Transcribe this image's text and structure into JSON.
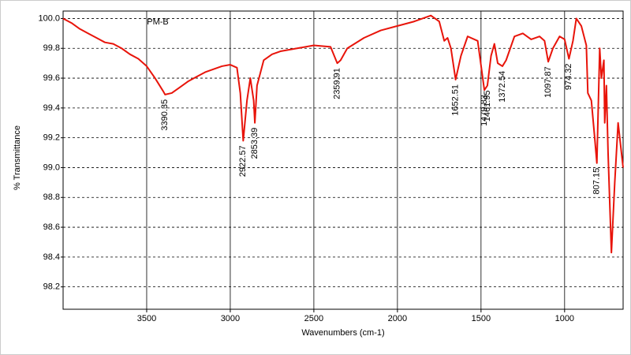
{
  "chart_data": {
    "type": "line",
    "title": "PM-B",
    "x_label": "Wavenumbers (cm-1)",
    "y_label": "% Transmittance",
    "xlim": [
      4000,
      650
    ],
    "ylim": [
      98.05,
      100.05
    ],
    "x_reversed": true,
    "xticks": [
      3500,
      3000,
      2500,
      2000,
      1500,
      1000
    ],
    "yticks": [
      {
        "value": 98.2,
        "label": "98.2"
      },
      {
        "value": 98.4,
        "label": "98.4"
      },
      {
        "value": 98.6,
        "label": "98.6"
      },
      {
        "value": 98.8,
        "label": "98.8"
      },
      {
        "value": 99.0,
        "label": "99.0"
      },
      {
        "value": 99.2,
        "label": "99.2"
      },
      {
        "value": 99.4,
        "label": "99.4"
      },
      {
        "value": 99.6,
        "label": "99.6"
      },
      {
        "value": 99.8,
        "label": "99.8"
      },
      {
        "value": 100.0,
        "label": "100.0"
      }
    ],
    "grid": true,
    "series": [
      {
        "name": "PM-B",
        "color": "#e8140a",
        "x": [
          4000,
          3950,
          3900,
          3850,
          3800,
          3750,
          3700,
          3650,
          3600,
          3550,
          3500,
          3450,
          3400,
          3390,
          3350,
          3300,
          3250,
          3200,
          3150,
          3100,
          3050,
          3000,
          2960,
          2940,
          2922.57,
          2900,
          2880,
          2860,
          2853,
          2840,
          2800,
          2750,
          2700,
          2600,
          2500,
          2400,
          2360,
          2340,
          2300,
          2200,
          2100,
          2000,
          1900,
          1800,
          1750,
          1720,
          1700,
          1680,
          1652,
          1620,
          1580,
          1520,
          1480,
          1462,
          1440,
          1420,
          1400,
          1372,
          1350,
          1300,
          1250,
          1200,
          1150,
          1120,
          1098,
          1070,
          1030,
          1000,
          974,
          950,
          930,
          900,
          870,
          861,
          840,
          820,
          807,
          790,
          780,
          765,
          760,
          750,
          740,
          720,
          700,
          680,
          660,
          650
        ],
        "values": [
          100.0,
          99.97,
          99.93,
          99.9,
          99.87,
          99.84,
          99.83,
          99.8,
          99.76,
          99.73,
          99.68,
          99.6,
          99.51,
          99.49,
          99.5,
          99.54,
          99.58,
          99.61,
          99.64,
          99.66,
          99.68,
          99.69,
          99.67,
          99.5,
          99.18,
          99.45,
          99.6,
          99.45,
          99.3,
          99.55,
          99.72,
          99.76,
          99.78,
          99.8,
          99.82,
          99.81,
          99.7,
          99.72,
          99.8,
          99.87,
          99.92,
          99.95,
          99.98,
          100.02,
          99.98,
          99.85,
          99.87,
          99.8,
          99.59,
          99.75,
          99.88,
          99.85,
          99.52,
          99.55,
          99.75,
          99.83,
          99.7,
          99.68,
          99.72,
          99.88,
          99.9,
          99.86,
          99.88,
          99.85,
          99.71,
          99.8,
          99.88,
          99.86,
          99.73,
          99.85,
          100.0,
          99.95,
          99.82,
          99.5,
          99.45,
          99.2,
          99.03,
          99.8,
          99.6,
          99.72,
          99.3,
          99.55,
          99.1,
          98.43,
          98.9,
          99.3,
          99.1,
          99.0
        ]
      }
    ],
    "annotations": [
      {
        "label": "3390.35",
        "x": 3390.35,
        "y": 99.49
      },
      {
        "label": "2922.57",
        "x": 2922.57,
        "y": 99.18
      },
      {
        "label": "2853.39",
        "x": 2853.39,
        "y": 99.3
      },
      {
        "label": "2359.91",
        "x": 2359.91,
        "y": 99.7
      },
      {
        "label": "1652.51",
        "x": 1652.51,
        "y": 99.59
      },
      {
        "label": "1479.83",
        "x": 1479.83,
        "y": 99.52
      },
      {
        "label": "1461.95",
        "x": 1461.95,
        "y": 99.55
      },
      {
        "label": "1372.54",
        "x": 1372.54,
        "y": 99.68
      },
      {
        "label": "1097.87",
        "x": 1097.87,
        "y": 99.71
      },
      {
        "label": "974.32",
        "x": 974.32,
        "y": 99.73
      },
      {
        "label": "807.15",
        "x": 807.15,
        "y": 99.03
      }
    ]
  }
}
